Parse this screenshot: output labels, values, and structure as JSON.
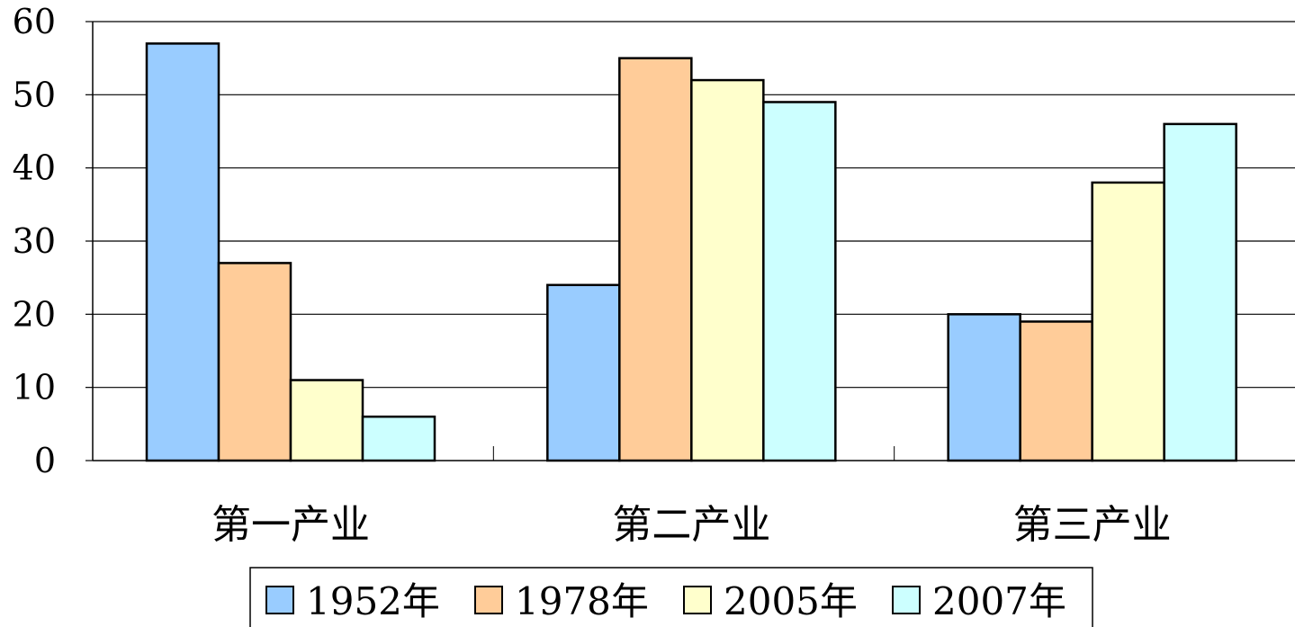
{
  "chart_data": {
    "type": "bar",
    "categories": [
      "第一产业",
      "第二产业",
      "第三产业"
    ],
    "series": [
      {
        "name": "1952年",
        "values": [
          57,
          24,
          20
        ],
        "color": "#99CCFF"
      },
      {
        "name": "1978年",
        "values": [
          27,
          55,
          19
        ],
        "color": "#FFCC99"
      },
      {
        "name": "2005年",
        "values": [
          11,
          52,
          38
        ],
        "color": "#FFFFCC"
      },
      {
        "name": "2007年",
        "values": [
          6,
          49,
          46
        ],
        "color": "#CCFFFF"
      }
    ],
    "ylim": [
      0,
      60
    ],
    "yticks": [
      0,
      10,
      20,
      30,
      40,
      50,
      60
    ],
    "grid": true,
    "legend_position": "bottom",
    "title": "",
    "xlabel": "",
    "ylabel": ""
  }
}
